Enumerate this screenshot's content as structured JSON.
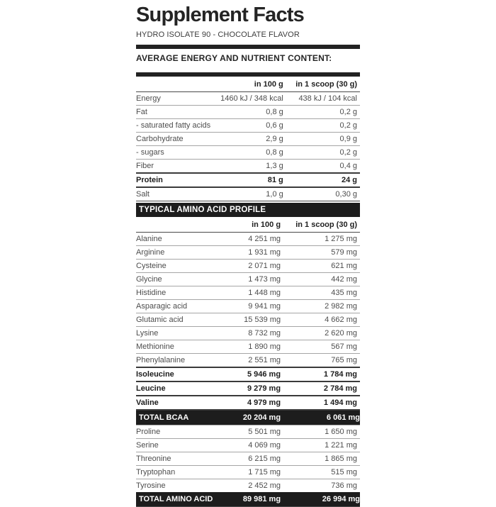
{
  "title": "Supplement Facts",
  "subtitle": "HYDRO ISOLATE 90 - CHOCOLATE FLAVOR",
  "colors": {
    "bar": "#1d1d1d",
    "text_regular": "#4d4d4d",
    "text_bold": "#1c1c1c",
    "background": "#ffffff"
  },
  "nutrient_section": {
    "heading": "AVERAGE ENERGY AND NUTRIENT CONTENT:",
    "columns": {
      "per100": "in 100 g",
      "scoop": "in 1 scoop (30 g)"
    },
    "rows": [
      {
        "name": "Energy",
        "per100": "1460 kJ / 348 kcal",
        "scoop": "438 kJ / 104 kcal",
        "bold": false
      },
      {
        "name": "Fat",
        "per100": "0,8 g",
        "scoop": "0,2 g",
        "bold": false
      },
      {
        "name": "- saturated fatty acids",
        "per100": "0,6 g",
        "scoop": "0,2 g",
        "bold": false
      },
      {
        "name": "Carbohydrate",
        "per100": "2,9 g",
        "scoop": "0,9 g",
        "bold": false
      },
      {
        "name": "- sugars",
        "per100": "0,8 g",
        "scoop": "0,2 g",
        "bold": false
      },
      {
        "name": "Fiber",
        "per100": "1,3 g",
        "scoop": "0,4 g",
        "bold": false
      },
      {
        "name": "Protein",
        "per100": "81 g",
        "scoop": "24 g",
        "bold": true
      },
      {
        "name": "Salt",
        "per100": "1,0 g",
        "scoop": "0,30 g",
        "bold": false
      }
    ]
  },
  "amino_section": {
    "heading": "TYPICAL AMINO ACID PROFILE",
    "columns": {
      "per100": "in 100 g",
      "scoop": "in 1 scoop (30 g)"
    },
    "rows": [
      {
        "name": "Alanine",
        "per100": "4 251 mg",
        "scoop": "1 275 mg",
        "bold": false
      },
      {
        "name": "Arginine",
        "per100": "1 931 mg",
        "scoop": "579 mg",
        "bold": false
      },
      {
        "name": "Cysteine",
        "per100": "2 071 mg",
        "scoop": "621 mg",
        "bold": false
      },
      {
        "name": "Glycine",
        "per100": "1 473 mg",
        "scoop": "442 mg",
        "bold": false
      },
      {
        "name": "Histidine",
        "per100": "1 448 mg",
        "scoop": "435 mg",
        "bold": false
      },
      {
        "name": "Asparagic acid",
        "per100": "9 941 mg",
        "scoop": "2 982 mg",
        "bold": false
      },
      {
        "name": "Glutamic acid",
        "per100": "15 539 mg",
        "scoop": "4 662 mg",
        "bold": false
      },
      {
        "name": "Lysine",
        "per100": "8 732 mg",
        "scoop": "2 620 mg",
        "bold": false
      },
      {
        "name": "Methionine",
        "per100": "1 890 mg",
        "scoop": "567 mg",
        "bold": false
      },
      {
        "name": "Phenylalanine",
        "per100": "2 551 mg",
        "scoop": "765 mg",
        "bold": false
      },
      {
        "name": "Isoleucine",
        "per100": "5 946 mg",
        "scoop": "1 784 mg",
        "bold": true
      },
      {
        "name": "Leucine",
        "per100": "9 279 mg",
        "scoop": "2 784 mg",
        "bold": true
      },
      {
        "name": "Valine",
        "per100": "4 979 mg",
        "scoop": "1 494 mg",
        "bold": true
      },
      {
        "name": "TOTAL BCAA",
        "per100": "20 204 mg",
        "scoop": "6 061 mg",
        "total": true
      },
      {
        "name": "Proline",
        "per100": "5 501 mg",
        "scoop": "1 650 mg",
        "bold": false
      },
      {
        "name": "Serine",
        "per100": "4 069 mg",
        "scoop": "1 221 mg",
        "bold": false
      },
      {
        "name": "Threonine",
        "per100": "6 215 mg",
        "scoop": "1 865 mg",
        "bold": false
      },
      {
        "name": "Tryptophan",
        "per100": "1 715 mg",
        "scoop": "515 mg",
        "bold": false
      },
      {
        "name": "Tyrosine",
        "per100": "2 452 mg",
        "scoop": "736 mg",
        "bold": false
      },
      {
        "name": "TOTAL AMINO ACID",
        "per100": "89 981 mg",
        "scoop": "26 994 mg",
        "total": true
      }
    ]
  }
}
